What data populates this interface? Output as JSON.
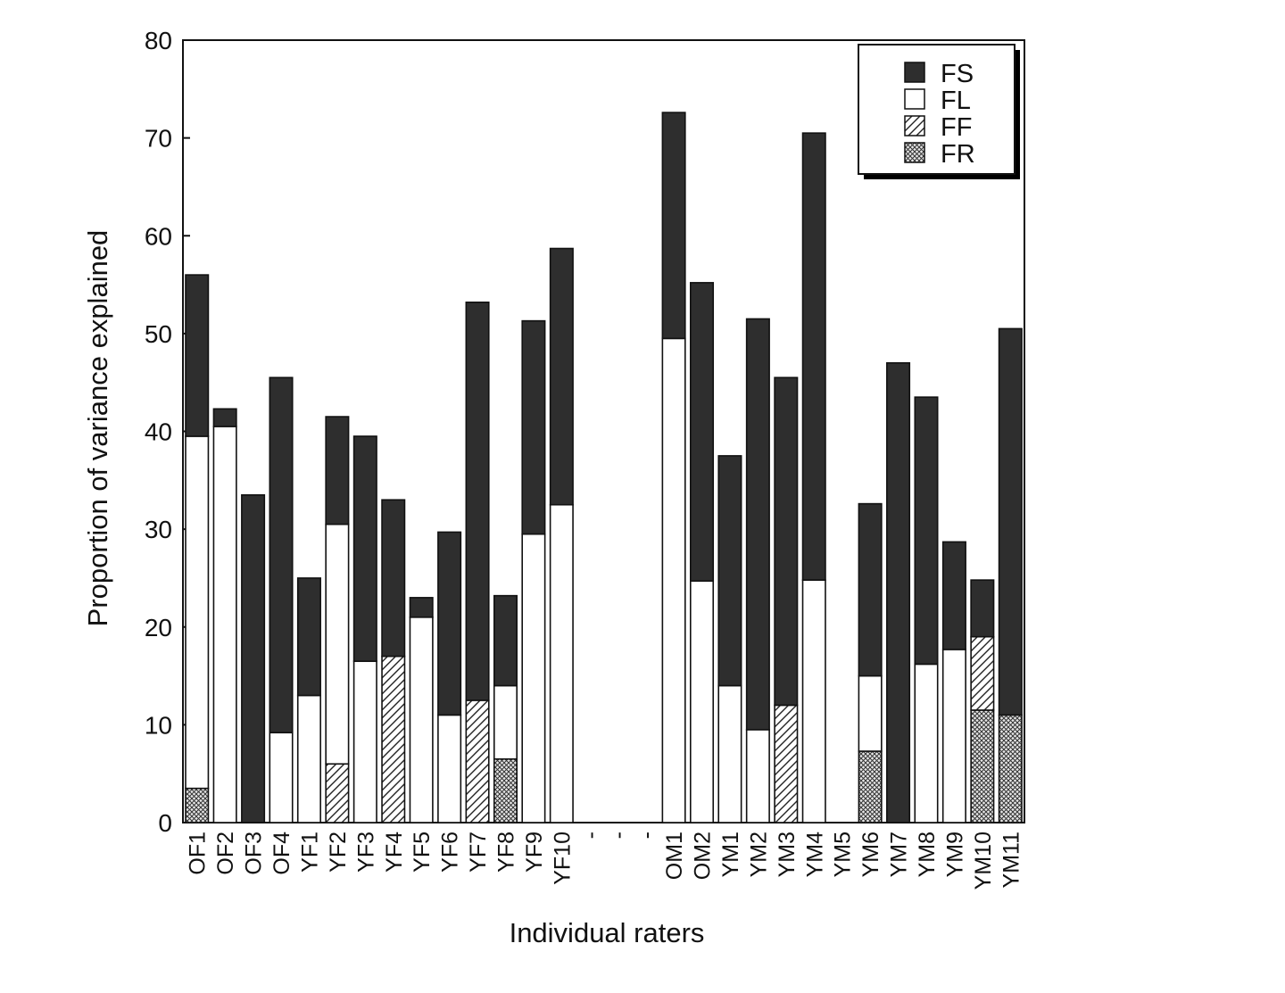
{
  "chart_data": {
    "type": "bar",
    "stacked": true,
    "title": "",
    "xlabel": "Individual raters",
    "ylabel": "Proportion of variance explained",
    "ylim": [
      0,
      80
    ],
    "yticks": [
      0,
      10,
      20,
      30,
      40,
      50,
      60,
      70,
      80
    ],
    "grid": false,
    "legend_position": "top-right",
    "categories": [
      "OF1",
      "OF2",
      "OF3",
      "OF4",
      "YF1",
      "YF2",
      "YF3",
      "YF4",
      "YF5",
      "YF6",
      "YF7",
      "YF8",
      "YF9",
      "YF10",
      "-",
      "-",
      "-",
      "OM1",
      "OM2",
      "YM1",
      "YM2",
      "YM3",
      "YM4",
      "YM5",
      "YM6",
      "YM7",
      "YM8",
      "YM9",
      "YM10",
      "YM11"
    ],
    "series": [
      {
        "name": "FR",
        "pattern": "crosshatch",
        "values": [
          3.5,
          0,
          0,
          0,
          0,
          0,
          0,
          0,
          0,
          0,
          0,
          6.5,
          0,
          0,
          0,
          0,
          0,
          0,
          0,
          0,
          0,
          0,
          0,
          0,
          7.3,
          0,
          0,
          0,
          11.5,
          11
        ]
      },
      {
        "name": "FF",
        "pattern": "diagonal",
        "values": [
          0,
          0,
          0,
          0,
          0,
          6,
          0,
          17,
          0,
          0,
          12.5,
          0,
          0,
          0,
          0,
          0,
          0,
          0,
          0,
          0,
          0,
          12,
          0,
          0,
          0,
          0,
          0,
          0,
          7.5,
          0
        ]
      },
      {
        "name": "FL",
        "pattern": "white",
        "values": [
          36,
          40.5,
          0,
          9.2,
          13,
          24.5,
          16.5,
          0,
          21,
          11,
          0,
          7.5,
          29.5,
          32.5,
          0,
          0,
          0,
          49.5,
          24.7,
          14,
          9.5,
          0,
          24.8,
          0,
          7.7,
          0,
          16.2,
          17.7,
          0,
          0
        ]
      },
      {
        "name": "FS",
        "pattern": "solid",
        "values": [
          16.5,
          1.8,
          33.5,
          36.3,
          12,
          11,
          23,
          16,
          2,
          18.7,
          40.7,
          9.2,
          21.8,
          26.2,
          0,
          0,
          0,
          23.1,
          30.5,
          23.5,
          42,
          33.5,
          45.7,
          0,
          17.6,
          47,
          27.3,
          11,
          5.8,
          39.5
        ]
      }
    ],
    "colors": {
      "FS": "#2e2e2e",
      "FL": "#ffffff",
      "FF": "#ffffff",
      "FR": "#bdbdbd",
      "stroke": "#111111"
    }
  }
}
